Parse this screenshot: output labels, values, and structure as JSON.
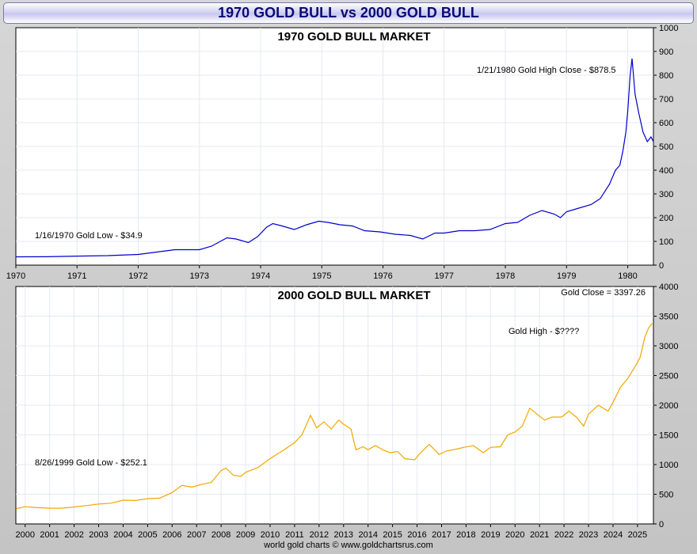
{
  "page": {
    "title": "1970 GOLD BULL vs 2000 GOLD BULL",
    "footer": "world gold charts © www.goldchartsrus.com",
    "colors": {
      "series_1970": "#0000cc",
      "series_2000": "#f0a800",
      "title_text": "#0a0a78"
    }
  },
  "chart_data": [
    {
      "type": "line",
      "title": "1970 GOLD BULL MARKET",
      "x_ticks": [
        "1970",
        "1971",
        "1972",
        "1973",
        "1974",
        "1975",
        "1976",
        "1977",
        "1978",
        "1979",
        "1980"
      ],
      "y_ticks": [
        "0",
        "100",
        "200",
        "300",
        "400",
        "500",
        "600",
        "700",
        "800",
        "900",
        "1000"
      ],
      "xlim": [
        1970.0,
        1980.42
      ],
      "ylim": [
        0,
        1000
      ],
      "grid": true,
      "series": [
        {
          "x": [
            1970.0,
            1970.5,
            1971.0,
            1971.5,
            1972.0,
            1972.3,
            1972.6,
            1973.0,
            1973.2,
            1973.45,
            1973.6,
            1973.8,
            1973.95,
            1974.1,
            1974.2,
            1974.35,
            1974.55,
            1974.75,
            1974.95,
            1975.1,
            1975.3,
            1975.5,
            1975.7,
            1975.95,
            1976.2,
            1976.45,
            1976.65,
            1976.85,
            1977.0,
            1977.25,
            1977.5,
            1977.75,
            1978.0,
            1978.2,
            1978.4,
            1978.6,
            1978.8,
            1978.9,
            1979.0,
            1979.2,
            1979.4,
            1979.55,
            1979.7,
            1979.8,
            1979.87,
            1979.92,
            1979.97,
            1980.0,
            1980.04,
            1980.07,
            1980.12,
            1980.18,
            1980.25,
            1980.32,
            1980.38,
            1980.42
          ],
          "y": [
            35,
            35.5,
            38,
            40,
            45,
            55,
            65,
            65,
            80,
            115,
            110,
            95,
            120,
            160,
            175,
            165,
            150,
            170,
            185,
            180,
            170,
            165,
            145,
            140,
            130,
            125,
            110,
            135,
            135,
            145,
            145,
            150,
            175,
            180,
            210,
            230,
            215,
            200,
            225,
            240,
            255,
            280,
            340,
            400,
            420,
            480,
            560,
            650,
            800,
            870,
            720,
            640,
            560,
            520,
            540,
            520
          ]
        }
      ],
      "annotations": [
        "1/21/1980 Gold High Close - $878.5",
        "1/16/1970 Gold Low - $34.9"
      ]
    },
    {
      "type": "line",
      "title": "2000 GOLD BULL MARKET",
      "x_ticks": [
        "2000",
        "2001",
        "2002",
        "2003",
        "2004",
        "2005",
        "2006",
        "2007",
        "2008",
        "2009",
        "2010",
        "2011",
        "2012",
        "2013",
        "2014",
        "2015",
        "2016",
        "2017",
        "2018",
        "2019",
        "2020",
        "2021",
        "2022",
        "2023",
        "2024",
        "2025"
      ],
      "y_ticks": [
        "0",
        "500",
        "1000",
        "1500",
        "2000",
        "2500",
        "3000",
        "3500",
        "4000"
      ],
      "xlim": [
        1999.62,
        2025.65
      ],
      "ylim": [
        0,
        4000
      ],
      "grid": true,
      "series": [
        {
          "x": [
            1999.65,
            2000.0,
            2000.5,
            2001.0,
            2001.5,
            2002.0,
            2002.5,
            2003.0,
            2003.5,
            2004.0,
            2004.5,
            2005.0,
            2005.5,
            2006.0,
            2006.4,
            2006.8,
            2007.2,
            2007.6,
            2008.0,
            2008.2,
            2008.5,
            2008.8,
            2009.0,
            2009.5,
            2010.0,
            2010.5,
            2011.0,
            2011.3,
            2011.65,
            2011.9,
            2012.2,
            2012.5,
            2012.8,
            2013.0,
            2013.3,
            2013.5,
            2013.8,
            2014.0,
            2014.3,
            2014.6,
            2014.9,
            2015.2,
            2015.5,
            2015.9,
            2016.1,
            2016.5,
            2016.9,
            2017.2,
            2017.6,
            2017.9,
            2018.3,
            2018.7,
            2019.0,
            2019.4,
            2019.7,
            2020.0,
            2020.3,
            2020.6,
            2020.9,
            2021.2,
            2021.5,
            2021.9,
            2022.2,
            2022.5,
            2022.8,
            2023.0,
            2023.4,
            2023.8,
            2024.0,
            2024.3,
            2024.6,
            2024.9,
            2025.1,
            2025.3,
            2025.45,
            2025.6
          ],
          "y": [
            260,
            290,
            275,
            265,
            265,
            285,
            310,
            335,
            350,
            400,
            395,
            425,
            435,
            530,
            650,
            620,
            665,
            700,
            900,
            940,
            820,
            800,
            870,
            950,
            1100,
            1230,
            1370,
            1500,
            1830,
            1620,
            1720,
            1600,
            1750,
            1680,
            1600,
            1250,
            1300,
            1250,
            1320,
            1250,
            1200,
            1220,
            1100,
            1080,
            1180,
            1340,
            1170,
            1230,
            1260,
            1290,
            1320,
            1200,
            1290,
            1300,
            1500,
            1550,
            1650,
            1950,
            1850,
            1750,
            1800,
            1800,
            1900,
            1800,
            1650,
            1850,
            2000,
            1900,
            2050,
            2300,
            2450,
            2650,
            2800,
            3150,
            3300,
            3380
          ]
        }
      ],
      "annotations": [
        "Gold Close = 3397.26",
        "Gold High - $????",
        "8/26/1999 Gold Low - $252.1"
      ]
    }
  ]
}
